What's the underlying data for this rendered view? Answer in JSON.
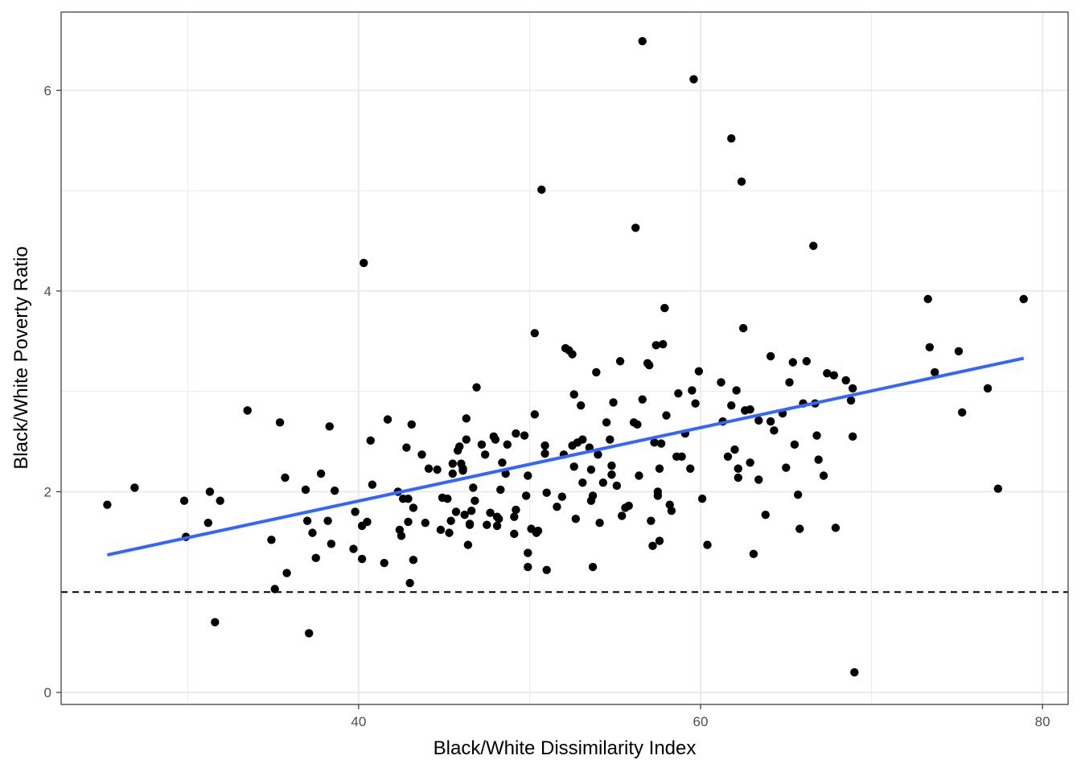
{
  "chart_data": {
    "type": "scatter",
    "title": "",
    "xlabel": "Black/White Dissimilarity Index",
    "ylabel": "Black/White Poverty Ratio",
    "xlim": [
      22.6,
      81.5
    ],
    "ylim": [
      -0.12,
      6.78
    ],
    "x_ticks": [
      40,
      60,
      80
    ],
    "y_ticks": [
      0,
      2,
      4,
      6
    ],
    "x_minor": [
      30,
      50,
      70
    ],
    "y_minor": [
      1,
      3,
      5
    ],
    "grid": true,
    "legend": "none",
    "colors": {
      "points": "#000000",
      "fit_line": "#3366ff",
      "reference_line": "#000000",
      "grid": "#ebebeb"
    },
    "reference_line": {
      "y": 1,
      "style": "dashed"
    },
    "fit_line": {
      "x": [
        25.3,
        78.9
      ],
      "y": [
        1.37,
        3.33
      ]
    },
    "points": [
      [
        25.3,
        1.87
      ],
      [
        26.9,
        2.04
      ],
      [
        29.8,
        1.91
      ],
      [
        29.9,
        1.55
      ],
      [
        31.3,
        2.0
      ],
      [
        31.2,
        1.69
      ],
      [
        31.9,
        1.91
      ],
      [
        31.6,
        0.7
      ],
      [
        33.5,
        2.81
      ],
      [
        35.4,
        2.69
      ],
      [
        35.7,
        2.14
      ],
      [
        34.9,
        1.52
      ],
      [
        35.1,
        1.03
      ],
      [
        35.8,
        1.19
      ],
      [
        36.9,
        2.02
      ],
      [
        37.0,
        1.71
      ],
      [
        37.3,
        1.59
      ],
      [
        37.1,
        0.59
      ],
      [
        37.5,
        1.34
      ],
      [
        37.8,
        2.18
      ],
      [
        38.2,
        1.71
      ],
      [
        38.3,
        2.65
      ],
      [
        38.4,
        1.48
      ],
      [
        38.6,
        2.01
      ],
      [
        39.7,
        1.43
      ],
      [
        39.8,
        1.8
      ],
      [
        40.2,
        1.66
      ],
      [
        40.2,
        1.33
      ],
      [
        40.3,
        4.28
      ],
      [
        40.5,
        1.7
      ],
      [
        40.7,
        2.51
      ],
      [
        40.8,
        2.07
      ],
      [
        41.5,
        1.29
      ],
      [
        41.7,
        2.72
      ],
      [
        42.3,
        2.0
      ],
      [
        42.4,
        1.62
      ],
      [
        42.5,
        1.56
      ],
      [
        42.6,
        1.93
      ],
      [
        42.8,
        2.44
      ],
      [
        42.9,
        1.93
      ],
      [
        42.9,
        1.7
      ],
      [
        43.0,
        1.09
      ],
      [
        43.1,
        2.67
      ],
      [
        43.2,
        1.84
      ],
      [
        43.2,
        1.32
      ],
      [
        43.7,
        2.37
      ],
      [
        43.9,
        1.69
      ],
      [
        44.1,
        2.23
      ],
      [
        44.6,
        2.22
      ],
      [
        44.8,
        1.62
      ],
      [
        44.9,
        1.94
      ],
      [
        45.2,
        1.93
      ],
      [
        45.3,
        1.59
      ],
      [
        45.4,
        1.71
      ],
      [
        45.5,
        2.28
      ],
      [
        45.5,
        2.18
      ],
      [
        45.7,
        1.8
      ],
      [
        45.8,
        2.41
      ],
      [
        45.9,
        2.45
      ],
      [
        46.0,
        2.28
      ],
      [
        46.1,
        2.23
      ],
      [
        46.1,
        2.21
      ],
      [
        46.2,
        1.77
      ],
      [
        46.3,
        2.52
      ],
      [
        46.3,
        2.73
      ],
      [
        46.4,
        1.47
      ],
      [
        46.5,
        1.68
      ],
      [
        46.5,
        1.67
      ],
      [
        46.6,
        1.81
      ],
      [
        46.7,
        2.04
      ],
      [
        46.8,
        1.91
      ],
      [
        46.9,
        3.04
      ],
      [
        47.2,
        2.47
      ],
      [
        47.4,
        2.37
      ],
      [
        47.5,
        1.67
      ],
      [
        47.7,
        1.79
      ],
      [
        47.9,
        2.55
      ],
      [
        48.0,
        2.52
      ],
      [
        48.1,
        1.75
      ],
      [
        48.1,
        1.66
      ],
      [
        48.2,
        1.73
      ],
      [
        48.3,
        2.02
      ],
      [
        48.4,
        2.29
      ],
      [
        48.6,
        2.18
      ],
      [
        48.7,
        2.47
      ],
      [
        49.1,
        1.58
      ],
      [
        49.1,
        1.75
      ],
      [
        49.2,
        1.82
      ],
      [
        49.2,
        2.58
      ],
      [
        49.7,
        2.56
      ],
      [
        49.8,
        1.96
      ],
      [
        49.9,
        2.16
      ],
      [
        49.9,
        1.39
      ],
      [
        49.9,
        1.25
      ],
      [
        50.1,
        1.63
      ],
      [
        50.3,
        2.77
      ],
      [
        50.3,
        3.58
      ],
      [
        50.4,
        1.59
      ],
      [
        50.5,
        1.61
      ],
      [
        50.7,
        5.01
      ],
      [
        50.9,
        2.38
      ],
      [
        50.9,
        2.46
      ],
      [
        51.0,
        1.22
      ],
      [
        51.0,
        1.99
      ],
      [
        51.6,
        1.85
      ],
      [
        51.9,
        1.95
      ],
      [
        52.0,
        2.37
      ],
      [
        52.1,
        3.43
      ],
      [
        52.3,
        3.41
      ],
      [
        52.5,
        3.37
      ],
      [
        52.5,
        2.46
      ],
      [
        52.6,
        2.97
      ],
      [
        52.6,
        2.25
      ],
      [
        52.7,
        1.73
      ],
      [
        52.8,
        2.49
      ],
      [
        53.0,
        2.86
      ],
      [
        53.1,
        2.52
      ],
      [
        53.1,
        2.09
      ],
      [
        53.5,
        2.44
      ],
      [
        53.6,
        1.91
      ],
      [
        53.6,
        2.22
      ],
      [
        53.7,
        1.96
      ],
      [
        53.7,
        1.25
      ],
      [
        53.9,
        3.19
      ],
      [
        54.0,
        2.37
      ],
      [
        54.1,
        1.69
      ],
      [
        54.3,
        2.09
      ],
      [
        54.5,
        2.69
      ],
      [
        54.7,
        2.52
      ],
      [
        54.8,
        2.17
      ],
      [
        54.8,
        2.26
      ],
      [
        54.9,
        2.89
      ],
      [
        55.1,
        2.06
      ],
      [
        55.3,
        3.3
      ],
      [
        55.4,
        1.76
      ],
      [
        55.6,
        1.84
      ],
      [
        55.8,
        1.86
      ],
      [
        56.1,
        2.69
      ],
      [
        56.2,
        4.63
      ],
      [
        56.3,
        2.67
      ],
      [
        56.4,
        2.16
      ],
      [
        56.6,
        2.92
      ],
      [
        56.6,
        6.49
      ],
      [
        56.9,
        3.28
      ],
      [
        57.0,
        3.26
      ],
      [
        57.1,
        1.71
      ],
      [
        57.2,
        1.46
      ],
      [
        57.3,
        2.49
      ],
      [
        57.4,
        3.46
      ],
      [
        57.5,
        2.0
      ],
      [
        57.5,
        1.96
      ],
      [
        57.6,
        2.23
      ],
      [
        57.6,
        1.51
      ],
      [
        57.7,
        2.48
      ],
      [
        57.8,
        3.47
      ],
      [
        57.9,
        3.83
      ],
      [
        58.0,
        2.76
      ],
      [
        58.2,
        1.87
      ],
      [
        58.3,
        1.81
      ],
      [
        58.6,
        2.35
      ],
      [
        58.7,
        2.98
      ],
      [
        58.9,
        2.35
      ],
      [
        59.1,
        2.58
      ],
      [
        59.4,
        2.23
      ],
      [
        59.5,
        3.01
      ],
      [
        59.6,
        6.11
      ],
      [
        59.7,
        2.88
      ],
      [
        59.9,
        3.2
      ],
      [
        60.1,
        1.93
      ],
      [
        60.4,
        1.47
      ],
      [
        61.2,
        3.09
      ],
      [
        61.3,
        2.7
      ],
      [
        61.6,
        2.35
      ],
      [
        61.8,
        5.52
      ],
      [
        61.8,
        2.86
      ],
      [
        62.0,
        2.42
      ],
      [
        62.1,
        3.01
      ],
      [
        62.2,
        2.23
      ],
      [
        62.2,
        2.14
      ],
      [
        62.4,
        5.09
      ],
      [
        62.5,
        3.63
      ],
      [
        62.6,
        2.81
      ],
      [
        62.9,
        2.29
      ],
      [
        62.9,
        2.82
      ],
      [
        63.1,
        1.38
      ],
      [
        63.4,
        2.71
      ],
      [
        63.4,
        2.12
      ],
      [
        63.8,
        1.77
      ],
      [
        64.1,
        2.7
      ],
      [
        64.1,
        3.35
      ],
      [
        64.3,
        2.61
      ],
      [
        64.8,
        2.78
      ],
      [
        65.0,
        2.24
      ],
      [
        65.2,
        3.09
      ],
      [
        65.4,
        3.29
      ],
      [
        65.5,
        2.47
      ],
      [
        65.7,
        1.97
      ],
      [
        65.8,
        1.63
      ],
      [
        66.0,
        2.88
      ],
      [
        66.2,
        3.3
      ],
      [
        66.6,
        4.45
      ],
      [
        66.7,
        2.88
      ],
      [
        66.8,
        2.56
      ],
      [
        66.9,
        2.32
      ],
      [
        67.2,
        2.16
      ],
      [
        67.4,
        3.18
      ],
      [
        67.8,
        3.16
      ],
      [
        67.9,
        1.64
      ],
      [
        68.5,
        3.11
      ],
      [
        68.8,
        2.91
      ],
      [
        68.9,
        3.03
      ],
      [
        68.9,
        2.55
      ],
      [
        69.0,
        0.2
      ],
      [
        73.3,
        3.92
      ],
      [
        73.4,
        3.44
      ],
      [
        73.7,
        3.19
      ],
      [
        75.1,
        3.4
      ],
      [
        75.3,
        2.79
      ],
      [
        76.8,
        3.03
      ],
      [
        77.4,
        2.03
      ],
      [
        78.9,
        3.92
      ]
    ]
  }
}
